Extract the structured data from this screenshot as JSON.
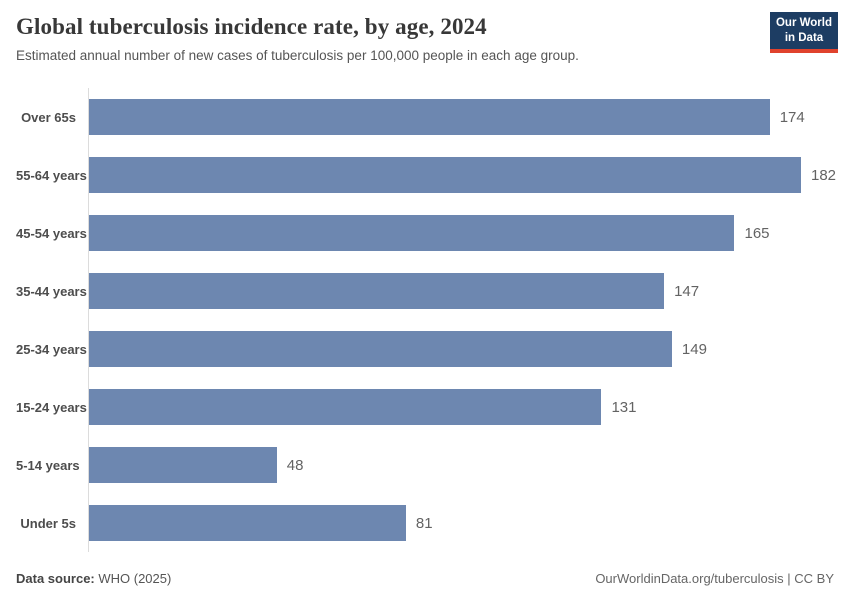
{
  "header": {
    "logo": {
      "line1": "Our World",
      "line2": "in Data"
    }
  },
  "chart_data": {
    "type": "bar",
    "orientation": "horizontal",
    "title": "Global tuberculosis incidence rate, by age, 2024",
    "subtitle": "Estimated annual number of new cases of tuberculosis per 100,000 people in each age group.",
    "categories": [
      "Over 65s",
      "55-64 years",
      "45-54 years",
      "35-44 years",
      "25-34 years",
      "15-24 years",
      "5-14 years",
      "Under 5s"
    ],
    "values": [
      174,
      182,
      165,
      147,
      149,
      131,
      48,
      81
    ],
    "xlabel": "",
    "ylabel": "",
    "xlim": [
      0,
      182
    ],
    "grid": false,
    "legend": "none",
    "value_labels_shown": true,
    "bar_color": "#6d87b0",
    "axis_line_color": "#dcdcdc"
  },
  "footer": {
    "source_label": "Data source:",
    "source_value": " WHO (2025)",
    "link": "OurWorldinData.org/tuberculosis",
    "license": " | CC BY"
  },
  "colors": {
    "logo_bg": "#1d3d63",
    "logo_accent": "#e0422d",
    "title_text": "#383838",
    "subtitle_text": "#555555"
  }
}
